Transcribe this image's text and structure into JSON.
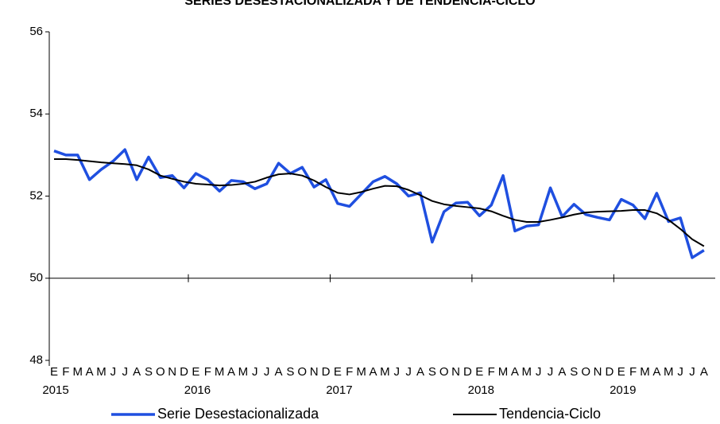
{
  "chart_data": {
    "type": "line",
    "title": "SERIES DESESTACIONALIZADA Y DE TENDENCIA-CICLO",
    "categories": [
      "E",
      "F",
      "M",
      "A",
      "M",
      "J",
      "J",
      "A",
      "S",
      "O",
      "N",
      "D",
      "E",
      "F",
      "M",
      "A",
      "M",
      "J",
      "J",
      "A",
      "S",
      "O",
      "N",
      "D",
      "E",
      "F",
      "M",
      "A",
      "M",
      "J",
      "J",
      "A",
      "S",
      "O",
      "N",
      "D",
      "E",
      "F",
      "M",
      "A",
      "M",
      "J",
      "J",
      "A",
      "S",
      "O",
      "N",
      "D",
      "E",
      "F",
      "M",
      "A",
      "M",
      "J",
      "J",
      "A"
    ],
    "years": [
      "2015",
      "2016",
      "2017",
      "2018",
      "2019"
    ],
    "series": [
      {
        "name": "Serie Desestacionalizada",
        "color": "#1f4fe0",
        "width": 3.5,
        "values": [
          53.1,
          53.0,
          53.0,
          52.4,
          52.65,
          52.85,
          53.13,
          52.4,
          52.95,
          52.45,
          52.5,
          52.2,
          52.55,
          52.4,
          52.12,
          52.38,
          52.35,
          52.18,
          52.3,
          52.8,
          52.55,
          52.7,
          52.22,
          52.4,
          51.82,
          51.75,
          52.05,
          52.35,
          52.48,
          52.3,
          52.0,
          52.08,
          50.88,
          51.62,
          51.83,
          51.85,
          51.52,
          51.78,
          52.5,
          51.15,
          51.27,
          51.3,
          52.2,
          51.5,
          51.8,
          51.55,
          51.48,
          51.42,
          51.92,
          51.78,
          51.45,
          52.07,
          51.38,
          51.47,
          50.5,
          50.68
        ]
      },
      {
        "name": "Tendencia-Ciclo",
        "color": "#000000",
        "width": 2,
        "values": [
          52.9,
          52.9,
          52.88,
          52.85,
          52.82,
          52.8,
          52.78,
          52.75,
          52.65,
          52.5,
          52.42,
          52.35,
          52.3,
          52.28,
          52.26,
          52.27,
          52.3,
          52.35,
          52.45,
          52.53,
          52.55,
          52.5,
          52.38,
          52.22,
          52.08,
          52.04,
          52.1,
          52.18,
          52.25,
          52.24,
          52.15,
          52.02,
          51.88,
          51.8,
          51.76,
          51.73,
          51.7,
          51.63,
          51.52,
          51.42,
          51.37,
          51.37,
          51.42,
          51.48,
          51.55,
          51.6,
          51.62,
          51.63,
          51.64,
          51.66,
          51.66,
          51.58,
          51.42,
          51.2,
          50.95,
          50.78
        ]
      }
    ],
    "ylim": [
      48,
      56
    ],
    "yticks": [
      48,
      50,
      52,
      54,
      56
    ],
    "x_axis_at": 50
  }
}
